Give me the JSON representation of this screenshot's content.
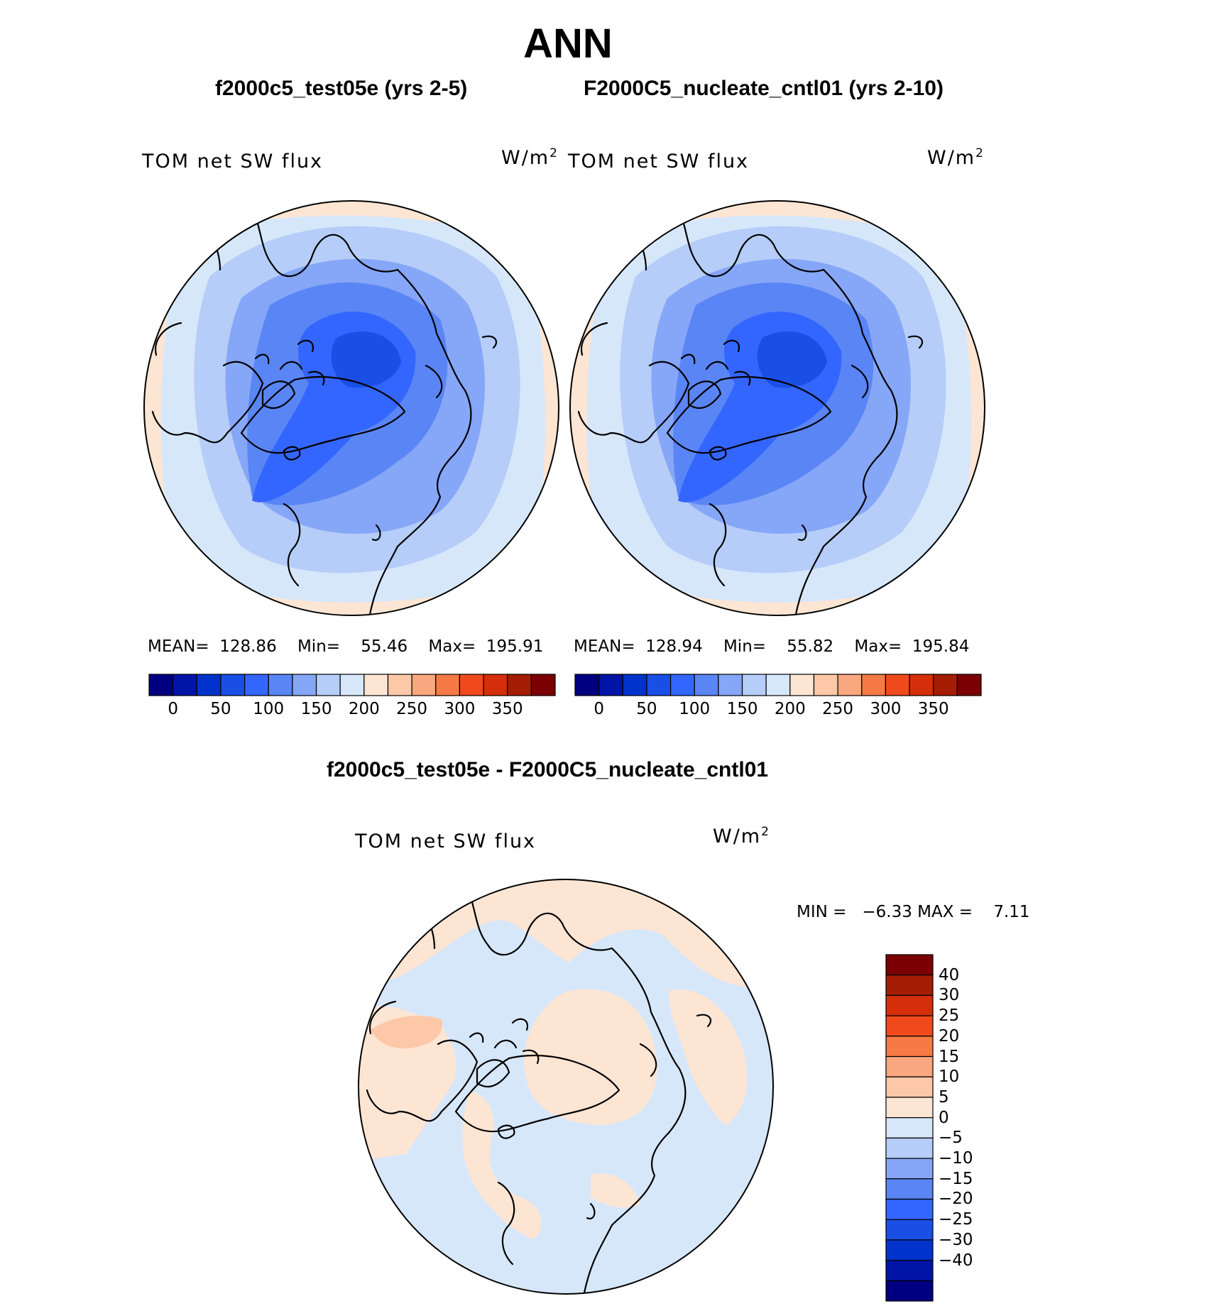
{
  "title": "ANN",
  "colors": {
    "main_scale": [
      "#000080",
      "#0014a8",
      "#0033cc",
      "#1a4fe6",
      "#3366ff",
      "#5a85f5",
      "#86a6f7",
      "#b5cdf8",
      "#d7e7fa",
      "#fde5d4",
      "#fcc8a8",
      "#f9a77f",
      "#f57a45",
      "#f04a1c",
      "#d52e0a",
      "#a51d04",
      "#7a0003"
    ],
    "diff_scale": [
      "#000080",
      "#0014a8",
      "#0033cc",
      "#1a4fe6",
      "#3366ff",
      "#5a85f5",
      "#86a6f7",
      "#b5cdf8",
      "#d7e7fa",
      "#fde5d4",
      "#fcc8a8",
      "#f9a77f",
      "#f57a45",
      "#f04a1c",
      "#d52e0a",
      "#a51d04",
      "#7a0003"
    ]
  },
  "panels": [
    {
      "title": "f2000c5_test05e (yrs 2-5)",
      "variable": "TOM net SW flux",
      "units": "W/m",
      "units_exp": "2",
      "mean_label": "MEAN=",
      "mean_value": "128.86",
      "min_label": "Min=",
      "min_value": "55.46",
      "max_label": "Max=",
      "max_value": "195.91"
    },
    {
      "title": "F2000C5_nucleate_cntl01 (yrs 2-10)",
      "variable": "TOM net SW flux",
      "units": "W/m",
      "units_exp": "2",
      "mean_label": "MEAN=",
      "mean_value": "128.94",
      "min_label": "Min=",
      "min_value": "55.82",
      "max_label": "Max=",
      "max_value": "195.84"
    }
  ],
  "main_colorbar": {
    "tick_labels": [
      "0",
      "50",
      "100",
      "150",
      "200",
      "250",
      "300",
      "350"
    ]
  },
  "difference": {
    "title": "f2000c5_test05e - F2000C5_nucleate_cntl01",
    "variable": "TOM net SW flux",
    "units": "W/m",
    "units_exp": "2",
    "min_label": "MIN =",
    "min_value": "−6.33",
    "max_label": "MAX =",
    "max_value": "7.11",
    "colorbar_labels": [
      "40",
      "30",
      "25",
      "20",
      "15",
      "10",
      "5",
      "0",
      "−5",
      "−10",
      "−15",
      "−20",
      "−25",
      "−30",
      "−40"
    ]
  }
}
